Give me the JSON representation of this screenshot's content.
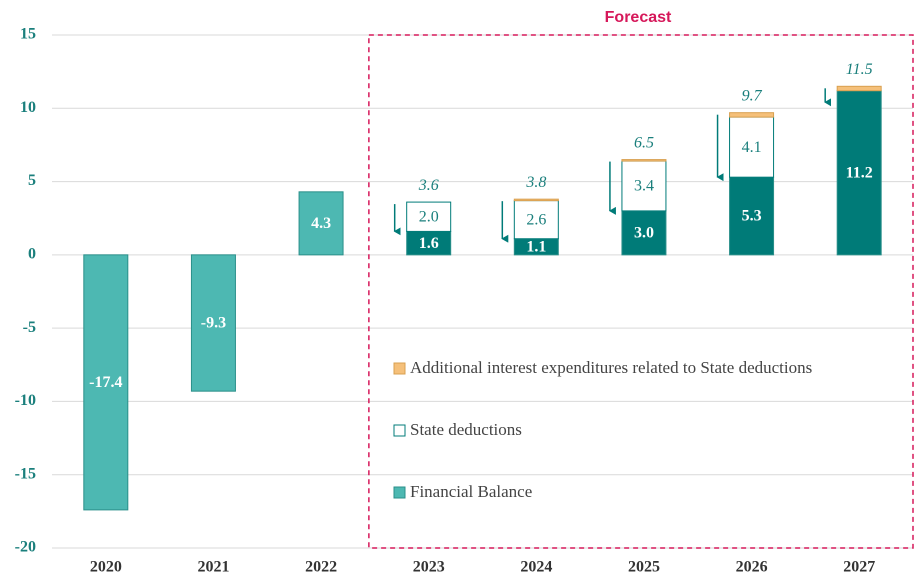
{
  "chart_data": {
    "type": "stacked_bar",
    "annotation": "Forecast",
    "categories": [
      "2020",
      "2021",
      "2022",
      "2023",
      "2024",
      "2025",
      "2026",
      "2027"
    ],
    "series": [
      {
        "name": "Financial Balance",
        "color": "#4db8b2",
        "colors": [
          "#4db8b2",
          "#4db8b2",
          "#4db8b2",
          "#007b78",
          "#007b78",
          "#007b78",
          "#007b78",
          "#007b78"
        ],
        "values": [
          -17.4,
          -9.3,
          4.3,
          1.6,
          1.1,
          3.0,
          5.3,
          11.2
        ],
        "value_labels": [
          "-17.4",
          "-9.3",
          "4.3",
          "1.6",
          "1.1",
          "3.0",
          "5.3",
          "11.2"
        ]
      },
      {
        "name": "State deductions",
        "color": "#ffffff",
        "stroke": "#007b78",
        "values": [
          null,
          null,
          null,
          2.0,
          2.6,
          3.4,
          4.1,
          null
        ],
        "value_labels": [
          null,
          null,
          null,
          "2.0",
          "2.6",
          "3.4",
          "4.1",
          null
        ]
      },
      {
        "name": "Additional interest expenditures related to State deductions",
        "color": "#f5c07a",
        "values": [
          null,
          null,
          null,
          null,
          0.1,
          0.1,
          0.3,
          0.3
        ]
      }
    ],
    "totals": {
      "values": [
        null,
        null,
        null,
        3.6,
        3.8,
        6.5,
        9.7,
        11.5
      ],
      "value_labels": [
        null,
        null,
        null,
        "3.6",
        "3.8",
        "6.5",
        "9.7",
        "11.5"
      ]
    },
    "forecast_start": "2023",
    "ylim": [
      -20,
      15
    ],
    "yticks": [
      -20,
      -15,
      -10,
      -5,
      0,
      5,
      10,
      15
    ],
    "grid": true
  }
}
